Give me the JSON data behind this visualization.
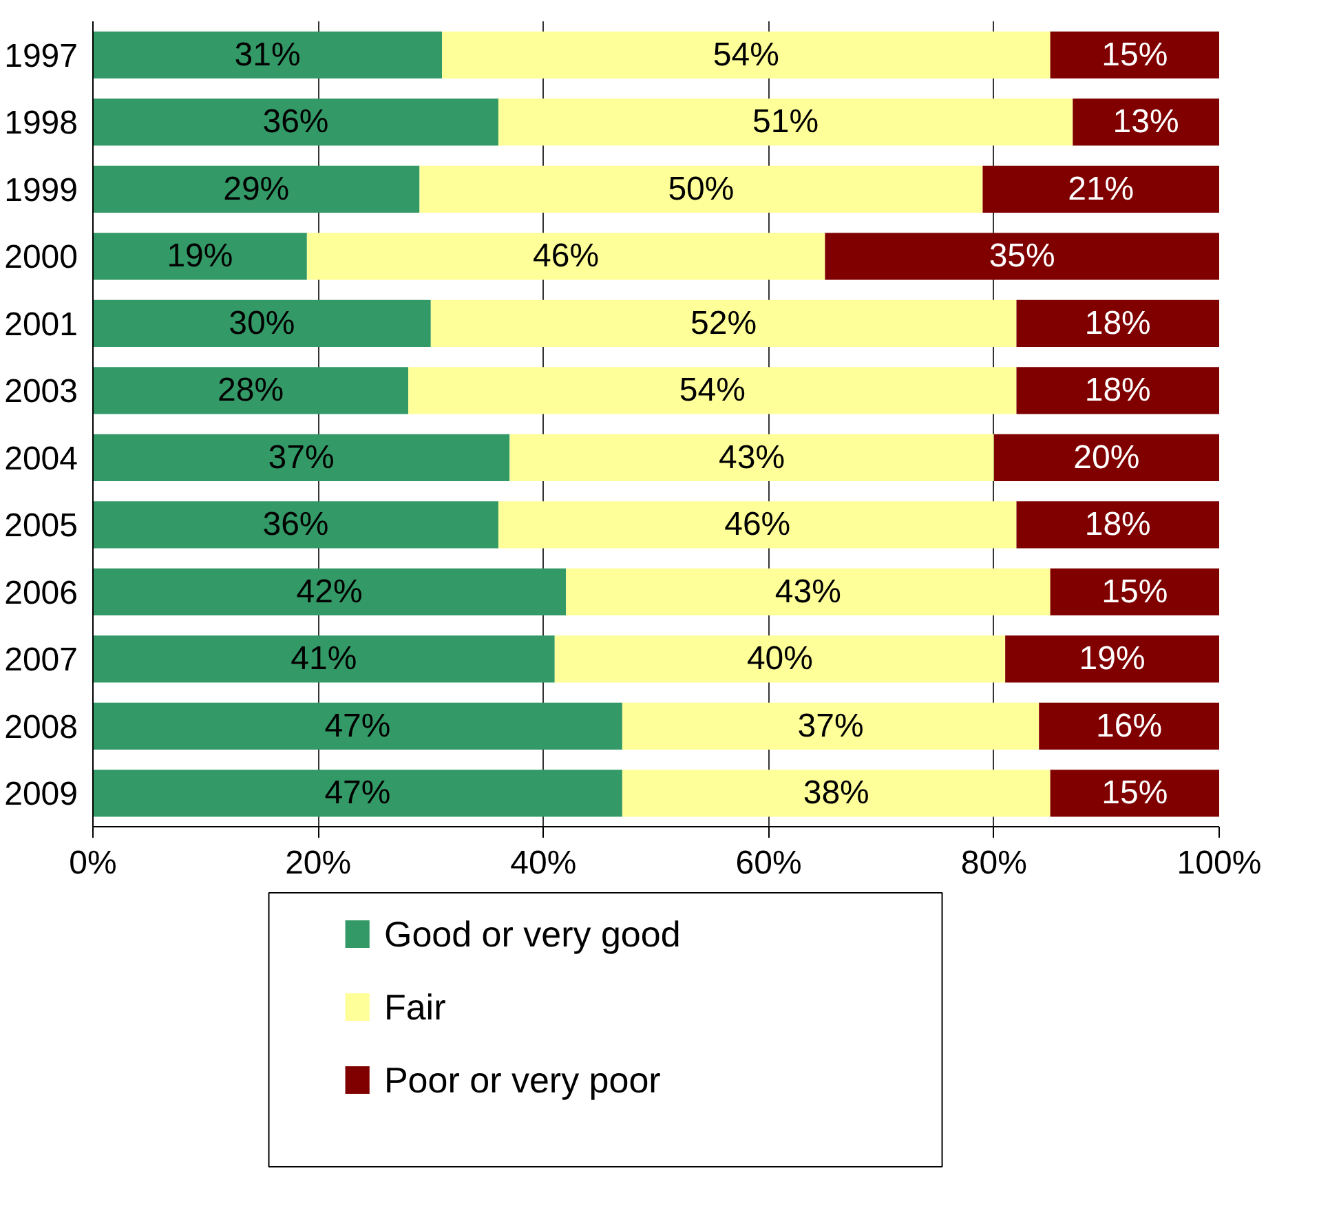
{
  "chart_data": {
    "type": "bar",
    "orientation": "horizontal",
    "stacked": true,
    "categories": [
      "1997",
      "1998",
      "1999",
      "2000",
      "2001",
      "2003",
      "2004",
      "2005",
      "2006",
      "2007",
      "2008",
      "2009"
    ],
    "series": [
      {
        "name": "Good or very good",
        "color": "#339966",
        "values": [
          31,
          36,
          29,
          19,
          30,
          28,
          37,
          36,
          42,
          41,
          47,
          47
        ],
        "value_labels": [
          "31%",
          "36%",
          "29%",
          "19%",
          "30%",
          "28%",
          "37%",
          "36%",
          "42%",
          "41%",
          "47%",
          "47%"
        ]
      },
      {
        "name": "Fair",
        "color": "#ffff99",
        "values": [
          54,
          51,
          50,
          46,
          52,
          54,
          43,
          46,
          43,
          40,
          37,
          38
        ],
        "value_labels": [
          "54%",
          "51%",
          "50%",
          "46%",
          "52%",
          "54%",
          "43%",
          "46%",
          "43%",
          "40%",
          "37%",
          "38%"
        ]
      },
      {
        "name": "Poor or very poor",
        "color": "#800000",
        "values": [
          15,
          13,
          21,
          35,
          18,
          18,
          20,
          18,
          15,
          19,
          16,
          15
        ],
        "value_labels": [
          "15%",
          "13%",
          "21%",
          "35%",
          "18%",
          "18%",
          "20%",
          "18%",
          "15%",
          "19%",
          "16%",
          "15%"
        ]
      }
    ],
    "xlim": [
      0,
      100
    ],
    "xticks": [
      {
        "value": 0,
        "label": "0%"
      },
      {
        "value": 20,
        "label": "20%"
      },
      {
        "value": 40,
        "label": "40%"
      },
      {
        "value": 60,
        "label": "60%"
      },
      {
        "value": 80,
        "label": "80%"
      },
      {
        "value": 100,
        "label": "100%"
      }
    ],
    "grid": "x",
    "legend": "bottom"
  }
}
